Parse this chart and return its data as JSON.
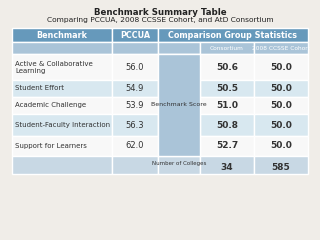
{
  "title_line1": "Benchmark Summary Table",
  "title_line2": "Comparing PCCUA, 2008 CCSSE Cohort, and AtD Consortium",
  "subheader_labels": [
    "Consortium",
    "2008 CCSSE Cohort"
  ],
  "merged_cell_label": "Benchmark Score",
  "last_row_label": "Number of Colleges",
  "rows": [
    [
      "Active & Collaborative\nLearning",
      "56.0",
      "50.6",
      "50.0"
    ],
    [
      "Student Effort",
      "54.9",
      "50.5",
      "50.0"
    ],
    [
      "Academic Challenge",
      "53.9",
      "51.0",
      "50.0"
    ],
    [
      "Student-Faculty Interaction",
      "56.3",
      "50.8",
      "50.0"
    ],
    [
      "Support for Learners",
      "62.0",
      "52.7",
      "50.0"
    ]
  ],
  "last_row_values": [
    "34",
    "585"
  ],
  "header_bg": "#6699bb",
  "subheader_bg": "#aac4d8",
  "alt_row_bg": "#d8e8f0",
  "white_row_bg": "#f8f8f8",
  "footer_bg": "#c8d8e4",
  "header_text_color": "#ffffff",
  "body_text_color": "#333333",
  "border_color": "#ffffff",
  "title_color": "#222222",
  "fig_bg": "#f0ede8"
}
